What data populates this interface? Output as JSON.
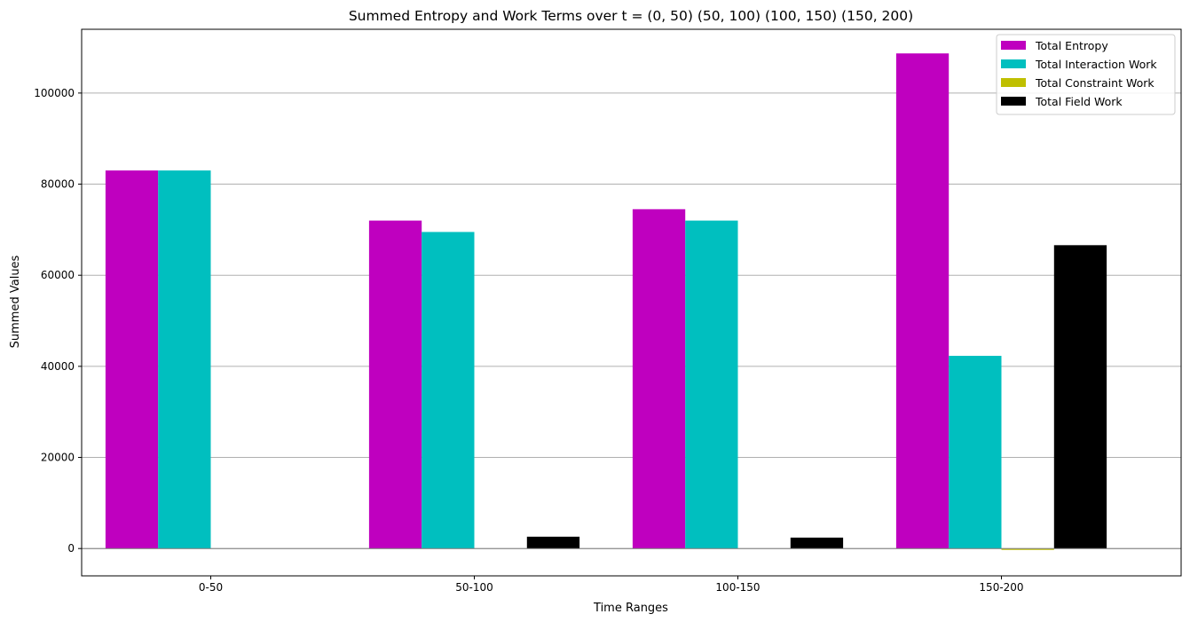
{
  "chart_data": {
    "type": "bar",
    "title": "Summed Entropy and Work Terms over t = (0, 50) (50, 100) (100, 150) (150, 200)",
    "xlabel": "Time Ranges",
    "ylabel": "Summed Values",
    "categories": [
      "0-50",
      "50-100",
      "100-150",
      "150-200"
    ],
    "ylim": [
      -6000,
      114000
    ],
    "yticks": [
      0,
      20000,
      40000,
      60000,
      80000,
      100000
    ],
    "grid": "y",
    "legend_position": "top-right",
    "series": [
      {
        "name": "Total Entropy",
        "color": "#bf00bf",
        "values": [
          83000,
          72000,
          74500,
          108700
        ]
      },
      {
        "name": "Total Interaction Work",
        "color": "#00bfbf",
        "values": [
          83000,
          69500,
          72000,
          42300
        ]
      },
      {
        "name": "Total Constraint Work",
        "color": "#bfbf00",
        "values": [
          0,
          0,
          0,
          -300
        ]
      },
      {
        "name": "Total Field Work",
        "color": "#000000",
        "values": [
          0,
          2600,
          2400,
          66600
        ]
      }
    ]
  }
}
